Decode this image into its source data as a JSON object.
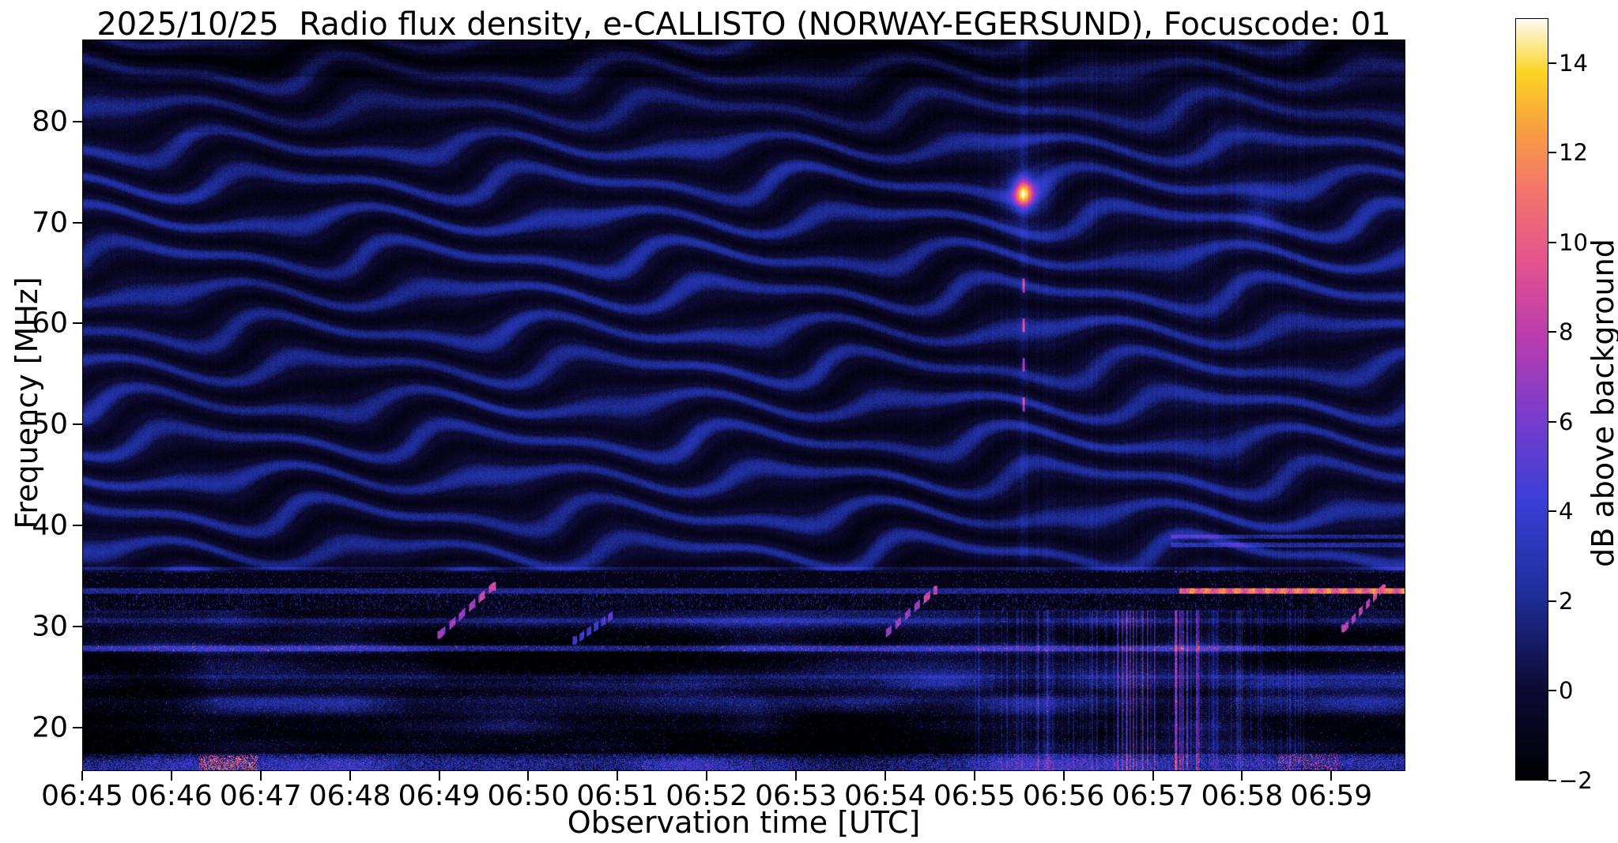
{
  "chart_data": {
    "type": "heatmap",
    "subtype": "radio-spectrogram",
    "title": "2025/10/25  Radio flux density, e-CALLISTO (NORWAY-EGERSUND), Focuscode: 01",
    "date": "2025/10/25",
    "instrument": "e-CALLISTO",
    "station": "NORWAY-EGERSUND",
    "focuscode": "01",
    "xlabel": "Observation time [UTC]",
    "ylabel": "Frequency [MHz]",
    "x_axis": {
      "tick_labels": [
        "06:45",
        "06:46",
        "06:47",
        "06:48",
        "06:49",
        "06:50",
        "06:51",
        "06:52",
        "06:53",
        "06:54",
        "06:55",
        "06:56",
        "06:57",
        "06:58",
        "06:59"
      ],
      "tick_minutes": [
        0,
        1,
        2,
        3,
        4,
        5,
        6,
        7,
        8,
        9,
        10,
        11,
        12,
        13,
        14
      ],
      "end_minutes": 14.83
    },
    "y_axis": {
      "ticks": [
        20,
        30,
        40,
        50,
        60,
        70,
        80
      ],
      "min_mhz": 15.7,
      "max_mhz": 88.1
    },
    "colorbar": {
      "label": "dB above background",
      "min_db": -2,
      "max_db": 15,
      "tick_values": [
        14,
        12,
        10,
        8,
        6,
        4,
        2,
        0,
        -2
      ],
      "tick_labels": [
        "14",
        "12",
        "10",
        "8",
        "6",
        "4",
        "2",
        "0",
        "−2"
      ],
      "colormap_stops": [
        [
          0.0,
          "#000004"
        ],
        [
          0.12,
          "#0d0b34"
        ],
        [
          0.25,
          "#1f2f9e"
        ],
        [
          0.37,
          "#3b3fd8"
        ],
        [
          0.48,
          "#7b3bcc"
        ],
        [
          0.58,
          "#b93cae"
        ],
        [
          0.68,
          "#e35390"
        ],
        [
          0.78,
          "#f4776a"
        ],
        [
          0.86,
          "#f9a13d"
        ],
        [
          0.93,
          "#fbd524"
        ],
        [
          1.0,
          "#fcfbf3"
        ]
      ]
    },
    "features": {
      "description": "Quiet-sun radio spectrogram: dark-blue background with wavy horizontal interference ripples above ~36 MHz, speckled ionospheric/RFI band below ~35 MHz, black band 31.6-35.3 MHz with a carrier line at 33.55 MHz that turns intense orange after ~06:57.3, a narrowband burst near 06:55:33 at ~73 MHz with faint vertical streak below it, dashed drifting streaks rising toward 34 MHz near 06:49, 06:50.5, 06:54 and 06:59.2, dense vertical RFI stripes 06:55-06:58.7 (orange columns near 06:56.6-06:57.6), and a bright speckled band below ~17.4 MHz.",
      "background_db": 0,
      "rfi_band_max_mhz": 35.5,
      "dark_band_mhz": [
        31.6,
        35.35
      ],
      "carrier_line_mhz": 33.55,
      "carrier_bright_segment": {
        "t_start_min": 12.3,
        "t_end_min": 14.83,
        "peak_db": 12
      },
      "burst": {
        "t_min": 10.55,
        "freq_mhz": 73.0,
        "peak_db": 10,
        "halo_db": 2.6
      },
      "drifting_streaks": [
        {
          "t_start_min": 4.0,
          "t_end_min": 4.6,
          "f_start_mhz": 29.2,
          "f_end_mhz": 34.0,
          "peak_db": 9
        },
        {
          "t_start_min": 5.52,
          "t_end_min": 5.95,
          "f_start_mhz": 28.6,
          "f_end_mhz": 31.2,
          "peak_db": 5
        },
        {
          "t_start_min": 8.97,
          "t_end_min": 9.55,
          "f_start_mhz": 29.0,
          "f_end_mhz": 33.6,
          "peak_db": 9
        },
        {
          "t_start_min": 14.15,
          "t_end_min": 14.58,
          "f_start_mhz": 29.8,
          "f_end_mhz": 33.8,
          "peak_db": 10
        }
      ],
      "vertical_stripes_t_range": [
        10.0,
        13.7
      ],
      "orange_columns_t_range": [
        11.6,
        12.6
      ],
      "bottom_band_max_mhz": 17.4,
      "bottom_orange_patch_t_range": [
        1.3,
        1.95
      ],
      "right_side_lines_mhz": [
        38.1,
        38.9
      ],
      "right_side_lines_t_start": 12.2
    }
  }
}
